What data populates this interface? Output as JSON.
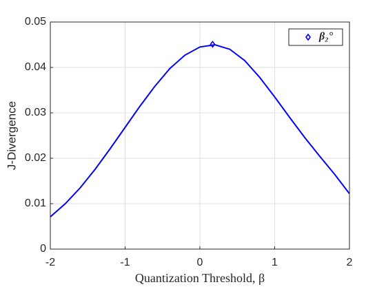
{
  "chart_data": {
    "type": "line",
    "xlabel": "Quantization Threshold, β",
    "ylabel": "J-Divergence",
    "x": [
      -2,
      -1.8,
      -1.6,
      -1.4,
      -1.2,
      -1.0,
      -0.8,
      -0.6,
      -0.4,
      -0.2,
      0,
      0.2,
      0.4,
      0.6,
      0.8,
      1.0,
      1.2,
      1.4,
      1.6,
      1.8,
      2.0
    ],
    "series": [
      {
        "name": "β₂°",
        "color": "#0000ff",
        "marker": "diamond",
        "x": [
          0.17
        ],
        "values": [
          0.0451
        ]
      },
      {
        "color": "#0000ff",
        "values": [
          0.0071,
          0.01,
          0.0135,
          0.0176,
          0.0221,
          0.0268,
          0.0315,
          0.0359,
          0.0398,
          0.0427,
          0.0445,
          0.045,
          0.044,
          0.0415,
          0.0378,
          0.0335,
          0.029,
          0.0246,
          0.0205,
          0.0165,
          0.0122
        ]
      }
    ],
    "xlim": [
      -2,
      2
    ],
    "xticks": [
      -2,
      -1,
      0,
      1,
      2
    ],
    "ylim": [
      0,
      0.05
    ],
    "yticks": [
      0,
      0.01,
      0.02,
      0.03,
      0.04,
      0.05
    ],
    "grid": true,
    "legend": "northeast"
  }
}
